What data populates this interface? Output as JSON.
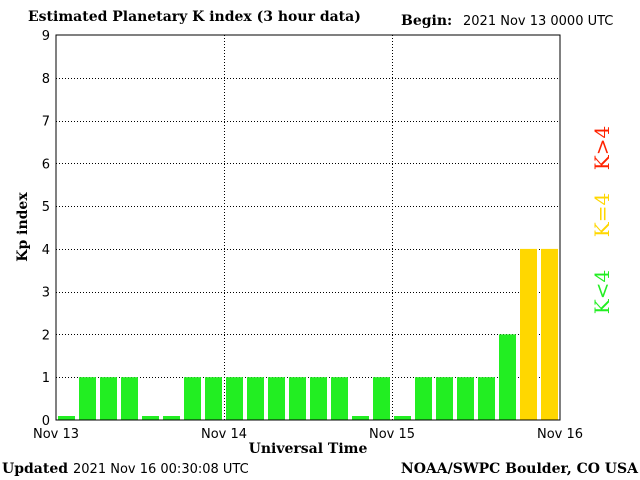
{
  "header": {
    "title": "Estimated Planetary K index (3 hour data)",
    "begin_label": "Begin:",
    "begin_value": "2021 Nov 13 0000 UTC"
  },
  "footer": {
    "updated_label": "Updated",
    "updated_value": "2021 Nov 16 00:30:08 UTC",
    "credit": "NOAA/SWPC Boulder, CO USA"
  },
  "legend": [
    {
      "text": "K<4",
      "color": "#22ee22"
    },
    {
      "text": "K=4",
      "color": "#ffd700"
    },
    {
      "text": "K>4",
      "color": "#ff2200"
    }
  ],
  "colors": {
    "below_4": "#22ee22",
    "equal_4": "#ffd700",
    "above_4": "#ff2200",
    "grid": "#000000",
    "frame": "#000000"
  },
  "chart_data": {
    "type": "bar",
    "title": "Estimated Planetary K index (3 hour data)",
    "xlabel": "Universal Time",
    "ylabel": "Kp index",
    "ylim": [
      0,
      9
    ],
    "yticks": [
      0,
      1,
      2,
      3,
      4,
      5,
      6,
      7,
      8,
      9
    ],
    "xtick_labels": [
      "Nov 13",
      "Nov 14",
      "Nov 15",
      "Nov 16"
    ],
    "bar_width_hours": 3,
    "x_range_hours": [
      0,
      72
    ],
    "grid": true,
    "values": [
      0,
      1,
      1,
      1,
      0,
      0,
      1,
      1,
      1,
      1,
      1,
      1,
      1,
      1,
      0,
      1,
      0,
      1,
      1,
      1,
      1,
      2,
      4,
      4
    ]
  }
}
